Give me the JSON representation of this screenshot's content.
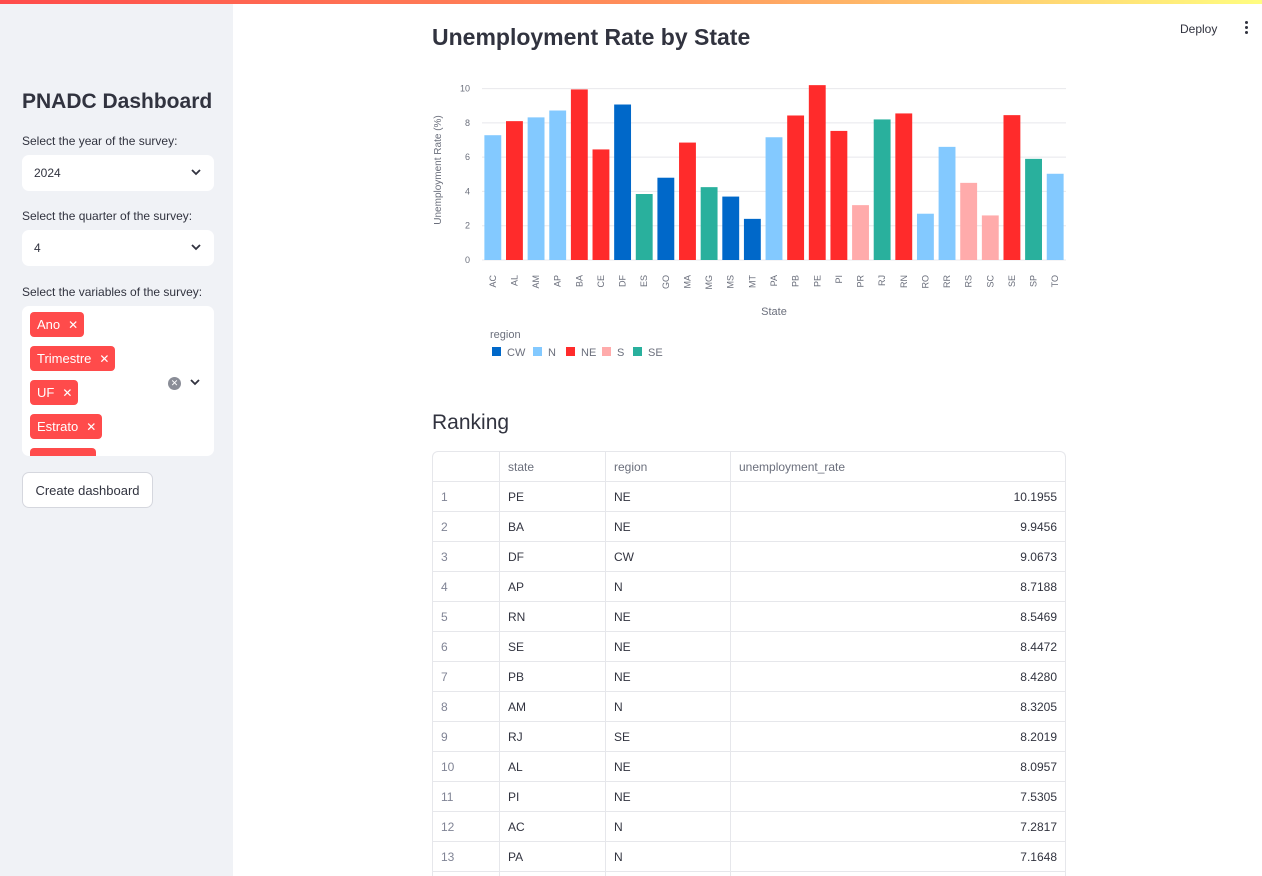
{
  "sidebar": {
    "title": "PNADC Dashboard",
    "year_label": "Select the year of the survey:",
    "year_value": "2024",
    "quarter_label": "Select the quarter of the survey:",
    "quarter_value": "4",
    "variables_label": "Select the variables of the survey:",
    "variables": [
      "Ano",
      "Trimestre",
      "UF",
      "Estrato"
    ],
    "create_button": "Create dashboard"
  },
  "header": {
    "deploy_label": "Deploy"
  },
  "main": {
    "chart_title": "Unemployment Rate by State",
    "ranking_title": "Ranking"
  },
  "colors": {
    "CW": "#0068c9",
    "N": "#83c9ff",
    "NE": "#ff2b2b",
    "S": "#ffabab",
    "SE": "#29b09d",
    "accent": "#ff4b4b"
  },
  "chart_data": {
    "type": "bar",
    "xlabel": "State",
    "ylabel": "Unemployment Rate (%)",
    "ylim": [
      0,
      10.5
    ],
    "yticks": [
      0,
      2,
      4,
      6,
      8,
      10
    ],
    "grid": true,
    "legend_title": "region",
    "legend": [
      "CW",
      "N",
      "NE",
      "S",
      "SE"
    ],
    "categories": [
      "AC",
      "AL",
      "AM",
      "AP",
      "BA",
      "CE",
      "DF",
      "ES",
      "GO",
      "MA",
      "MG",
      "MS",
      "MT",
      "PA",
      "PB",
      "PE",
      "PI",
      "PR",
      "RJ",
      "RN",
      "RO",
      "RR",
      "RS",
      "SC",
      "SE",
      "SP",
      "TO"
    ],
    "regions": [
      "N",
      "NE",
      "N",
      "N",
      "NE",
      "NE",
      "CW",
      "SE",
      "CW",
      "NE",
      "SE",
      "CW",
      "CW",
      "N",
      "NE",
      "NE",
      "NE",
      "S",
      "SE",
      "NE",
      "N",
      "N",
      "S",
      "S",
      "NE",
      "SE",
      "N"
    ],
    "values": [
      7.28,
      8.1,
      8.32,
      8.72,
      9.95,
      6.45,
      9.07,
      3.85,
      4.8,
      6.85,
      4.25,
      3.7,
      2.4,
      7.16,
      8.43,
      10.2,
      7.53,
      3.2,
      8.2,
      8.55,
      2.7,
      6.6,
      4.5,
      2.6,
      8.45,
      5.9,
      5.03
    ]
  },
  "table": {
    "columns": [
      "",
      "state",
      "region",
      "unemployment_rate"
    ],
    "rows": [
      [
        "1",
        "PE",
        "NE",
        "10.1955"
      ],
      [
        "2",
        "BA",
        "NE",
        "9.9456"
      ],
      [
        "3",
        "DF",
        "CW",
        "9.0673"
      ],
      [
        "4",
        "AP",
        "N",
        "8.7188"
      ],
      [
        "5",
        "RN",
        "NE",
        "8.5469"
      ],
      [
        "6",
        "SE",
        "NE",
        "8.4472"
      ],
      [
        "7",
        "PB",
        "NE",
        "8.4280"
      ],
      [
        "8",
        "AM",
        "N",
        "8.3205"
      ],
      [
        "9",
        "RJ",
        "SE",
        "8.2019"
      ],
      [
        "10",
        "AL",
        "NE",
        "8.0957"
      ],
      [
        "11",
        "PI",
        "NE",
        "7.5305"
      ],
      [
        "12",
        "AC",
        "N",
        "7.2817"
      ],
      [
        "13",
        "PA",
        "N",
        "7.1648"
      ],
      [
        "",
        "",
        "",
        ""
      ]
    ]
  }
}
